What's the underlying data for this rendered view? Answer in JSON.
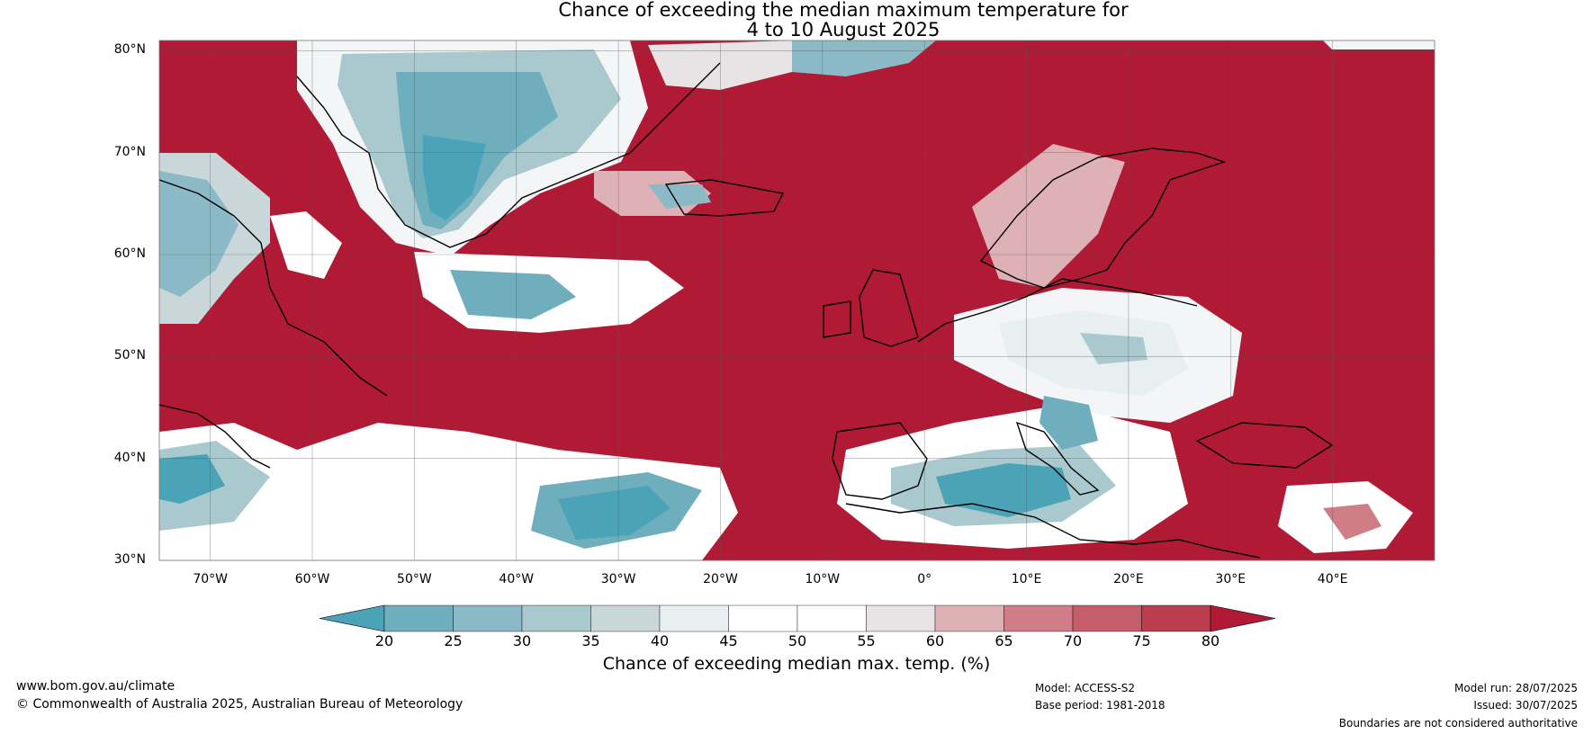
{
  "title_line1": "Chance of exceeding the median maximum temperature for",
  "title_line2": "4 to 10 August 2025",
  "map": {
    "lat_labels": [
      "80°N",
      "70°N",
      "60°N",
      "50°N",
      "40°N",
      "30°N"
    ],
    "lon_labels": [
      "70°W",
      "60°W",
      "50°W",
      "40°W",
      "30°W",
      "20°W",
      "10°W",
      "0°",
      "10°E",
      "20°E",
      "30°E",
      "40°E"
    ],
    "extent": {
      "lon_min": -75,
      "lon_max": 50,
      "lat_min": 30,
      "lat_max": 81
    },
    "warm_color": "#b01a34",
    "cool_color": "#4aa3b7"
  },
  "colorbar": {
    "ticks": [
      "20",
      "25",
      "30",
      "35",
      "40",
      "45",
      "50",
      "55",
      "60",
      "65",
      "70",
      "75",
      "80"
    ],
    "colors": [
      "#4aa3b7",
      "#6eaebd",
      "#8bbac6",
      "#aac9ce",
      "#c9d7da",
      "#e8eff0",
      "#ffffff",
      "#ffffff",
      "#e8e3e4",
      "#deb1b6",
      "#cf7d86",
      "#c45e69",
      "#ba3e4d",
      "#b01a34"
    ],
    "label": "Chance of exceeding median max. temp. (%)"
  },
  "footer": {
    "website": "www.bom.gov.au/climate",
    "copyright": "© Commonwealth of Australia 2025, Australian Bureau of Meteorology",
    "model": "Model: ACCESS-S2",
    "base_period": "Base period: 1981-2018",
    "model_run": "Model run: 28/07/2025",
    "issued": "Issued: 30/07/2025",
    "disclaimer": "Boundaries are not considered authoritative"
  }
}
